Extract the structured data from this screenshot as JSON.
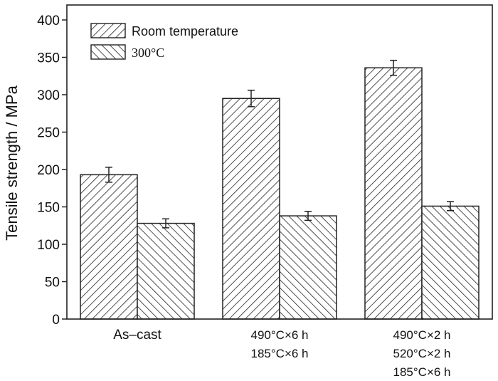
{
  "chart_data": {
    "type": "bar",
    "ylabel": "Tensile strength / MPa",
    "ylim": [
      0,
      420
    ],
    "yticks": [
      0,
      50,
      100,
      150,
      200,
      250,
      300,
      350,
      400
    ],
    "categories": [
      [
        "As–cast"
      ],
      [
        "490°C×6 h",
        "185°C×6 h"
      ],
      [
        "490°C×2 h",
        "520°C×2 h",
        "185°C×6 h"
      ]
    ],
    "series": [
      {
        "name": "Room temperature",
        "values": [
          193,
          295,
          336
        ],
        "errors": [
          10,
          11,
          10
        ],
        "hatch": "forward-diagonal"
      },
      {
        "name": "300°C",
        "values": [
          128,
          138,
          151
        ],
        "errors": [
          6,
          6,
          6
        ],
        "hatch": "back-diagonal"
      }
    ],
    "legend_position": "top-left",
    "grid": false
  }
}
